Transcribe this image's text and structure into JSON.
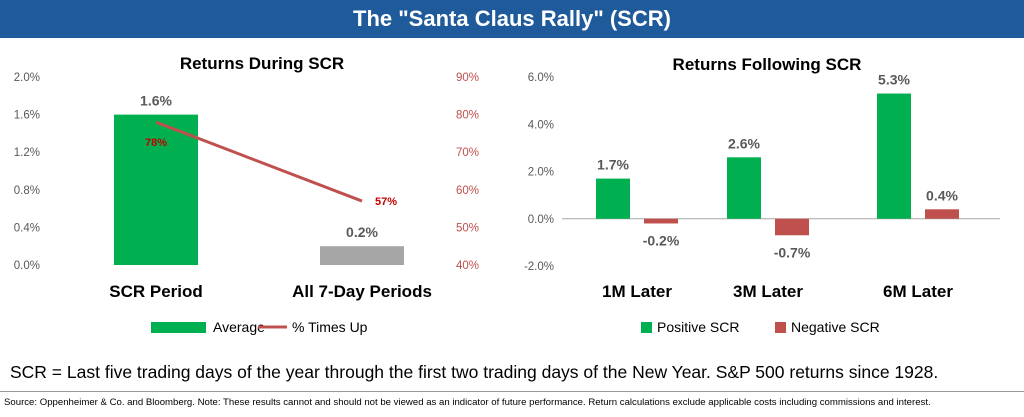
{
  "header": {
    "title": "The \"Santa Claus Rally\" (SCR)"
  },
  "chart_data": [
    {
      "type": "bar",
      "title": "Returns During SCR",
      "categories": [
        "SCR Period",
        "All 7-Day Periods"
      ],
      "series": [
        {
          "name": "Average",
          "values": [
            1.6,
            0.2
          ],
          "data_labels": [
            "1.6%",
            "0.2%"
          ],
          "colors": [
            "#00b050",
            "#a6a6a6"
          ]
        },
        {
          "name": "% Times Up",
          "type": "line",
          "axis": "secondary",
          "values": [
            78,
            57
          ],
          "data_labels": [
            "78%",
            "57%"
          ],
          "color": "#c0504d"
        }
      ],
      "y_axis": {
        "min": 0,
        "max": 2.0,
        "ticks": [
          "0.0%",
          "0.4%",
          "0.8%",
          "1.2%",
          "1.6%",
          "2.0%"
        ]
      },
      "y2_axis": {
        "min": 40,
        "max": 90,
        "ticks": [
          "40%",
          "50%",
          "60%",
          "70%",
          "80%",
          "90%"
        ]
      },
      "legend": {
        "placement": "bottom",
        "items": [
          {
            "label": "Average",
            "color": "#00b050"
          },
          {
            "label": "% Times Up",
            "color": "#c0504d"
          }
        ]
      }
    },
    {
      "type": "bar",
      "title": "Returns Following SCR",
      "categories": [
        "1M Later",
        "3M Later",
        "6M Later"
      ],
      "series": [
        {
          "name": "Positive SCR",
          "values": [
            1.7,
            2.6,
            5.3
          ],
          "data_labels": [
            "1.7%",
            "2.6%",
            "5.3%"
          ],
          "color": "#00b050"
        },
        {
          "name": "Negative SCR",
          "values": [
            -0.2,
            -0.7,
            0.4
          ],
          "data_labels": [
            "-0.2%",
            "-0.7%",
            "0.4%"
          ],
          "color": "#c0504d"
        }
      ],
      "y_axis": {
        "min": -2.0,
        "max": 6.0,
        "ticks": [
          "-2.0%",
          "0.0%",
          "2.0%",
          "4.0%",
          "6.0%"
        ]
      },
      "legend": {
        "placement": "bottom",
        "items": [
          {
            "label": "Positive SCR",
            "color": "#00b050"
          },
          {
            "label": "Negative SCR",
            "color": "#c0504d"
          }
        ]
      }
    }
  ],
  "footnote": "SCR = Last five trading days of the year through the first two trading days of the New Year.  S&P 500 returns since 1928.",
  "source": "Source: Oppenheimer & Co. and Bloomberg. Note: These results cannot and should not be viewed as an indicator of future performance. Return calculations exclude applicable costs including commissions and interest."
}
